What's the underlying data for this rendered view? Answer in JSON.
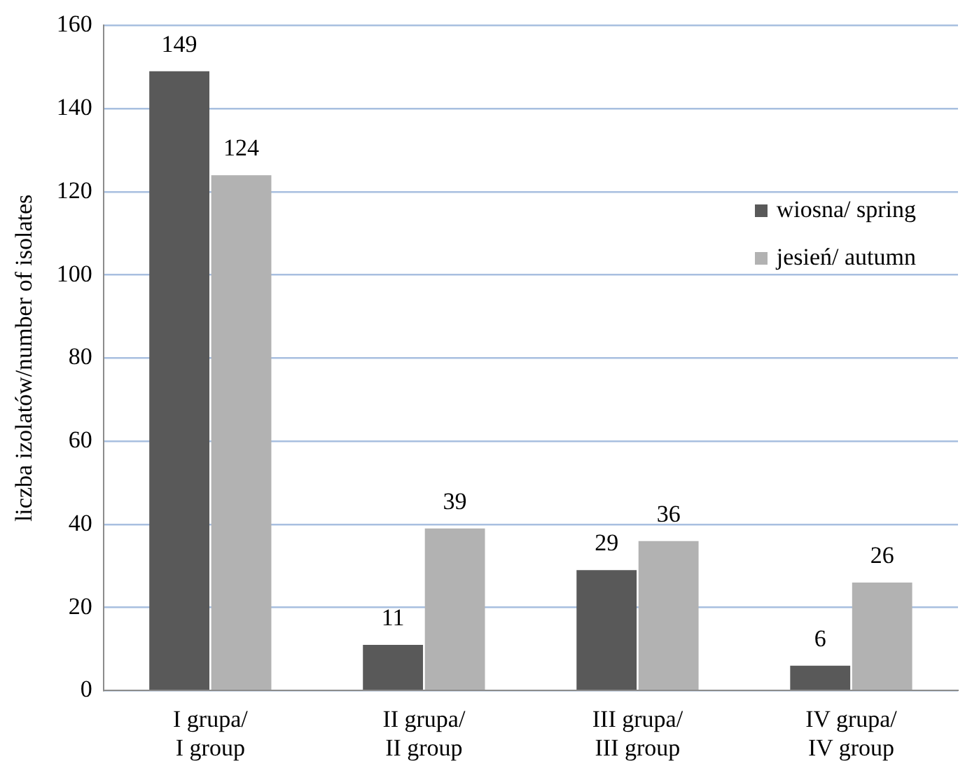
{
  "chart_data": {
    "type": "bar",
    "ylabel": "liczba izolatów/number of isolates",
    "categories": [
      "I grupa/\nI group",
      "II grupa/\nII group",
      "III grupa/\nIII group",
      "IV grupa/\nIV group"
    ],
    "series": [
      {
        "name": "wiosna/ spring",
        "color": "#595959",
        "values": [
          149,
          11,
          29,
          6
        ]
      },
      {
        "name": "jesień/ autumn",
        "color": "#b2b2b2",
        "values": [
          124,
          39,
          36,
          26
        ]
      }
    ],
    "ylim": [
      0,
      160
    ],
    "yticks": [
      0,
      20,
      40,
      60,
      80,
      100,
      120,
      140,
      160
    ],
    "grid": "y",
    "legend": "top right",
    "data_labels": true
  }
}
